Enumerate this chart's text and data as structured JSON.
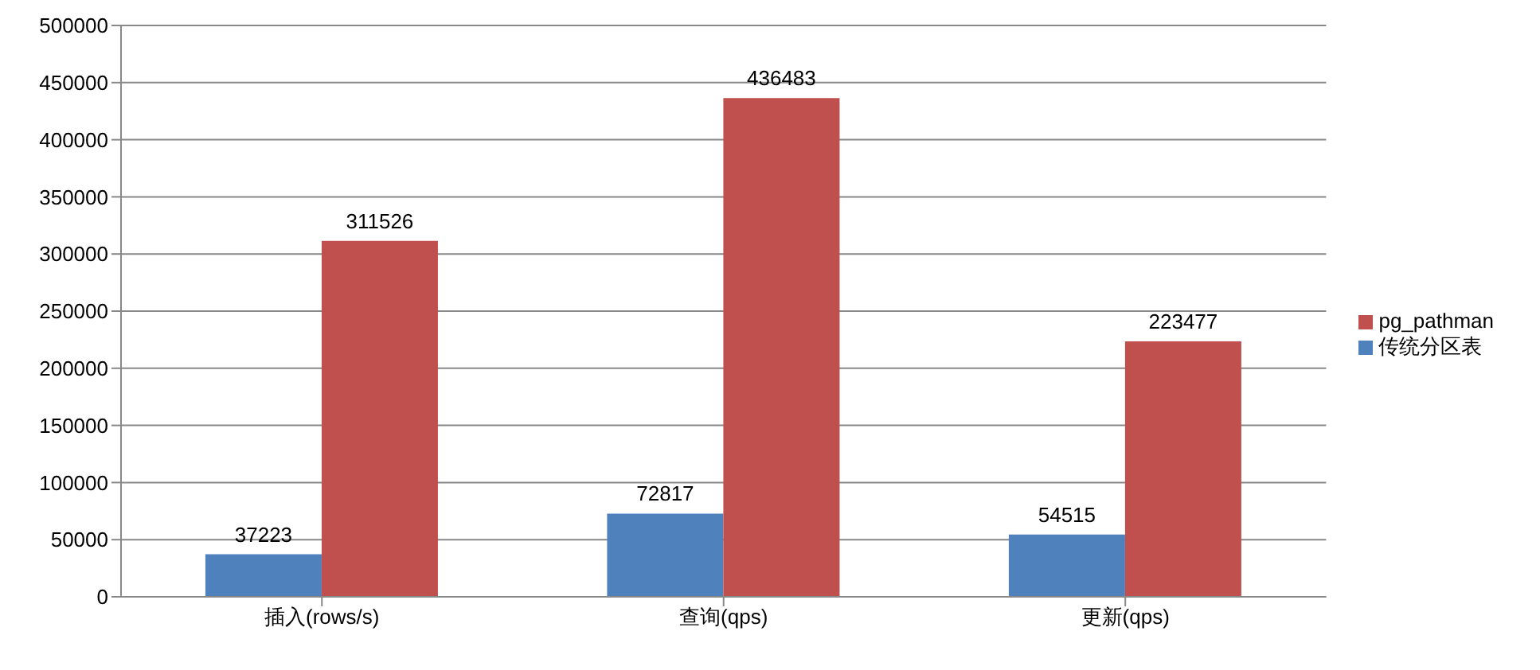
{
  "chart_data": {
    "type": "bar",
    "categories": [
      "插入(rows/s)",
      "查询(qps)",
      "更新(qps)"
    ],
    "series": [
      {
        "name": "传统分区表",
        "color": "#4f81bd",
        "values": [
          37223,
          72817,
          54515
        ]
      },
      {
        "name": "pg_pathman",
        "color": "#c0504d",
        "values": [
          311526,
          436483,
          223477
        ]
      }
    ],
    "ylim": [
      0,
      500000
    ],
    "yticks": [
      0,
      50000,
      100000,
      150000,
      200000,
      250000,
      300000,
      350000,
      400000,
      450000,
      500000
    ],
    "grid": "y",
    "legend": "right",
    "data_labels": true
  }
}
